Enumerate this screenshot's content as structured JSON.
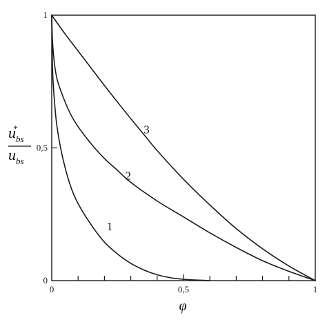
{
  "chart_data": {
    "type": "line",
    "xlabel": "φ",
    "ylabel": {
      "numerator_base": "u",
      "numerator_sub": "bs",
      "numerator_sup": "*",
      "denominator_base": "u",
      "denominator_sub": "bs"
    },
    "xlim": [
      0,
      1
    ],
    "ylim": [
      0,
      1
    ],
    "x_ticks": [
      {
        "value": 0,
        "label": "0"
      },
      {
        "value": 0.5,
        "label": "0,5"
      },
      {
        "value": 1,
        "label": "1"
      }
    ],
    "y_ticks": [
      {
        "value": 0,
        "label": "0"
      },
      {
        "value": 0.5,
        "label": "0,5"
      },
      {
        "value": 1,
        "label": "1"
      }
    ],
    "grid": false,
    "series": [
      {
        "label": "1",
        "label_at": [
          0.22,
          0.19
        ],
        "points": [
          [
            0,
            1
          ],
          [
            0.003,
            0.8
          ],
          [
            0.01,
            0.68
          ],
          [
            0.02,
            0.58
          ],
          [
            0.04,
            0.47
          ],
          [
            0.07,
            0.36
          ],
          [
            0.1,
            0.29
          ],
          [
            0.15,
            0.21
          ],
          [
            0.2,
            0.145
          ],
          [
            0.25,
            0.1
          ],
          [
            0.3,
            0.065
          ],
          [
            0.35,
            0.04
          ],
          [
            0.4,
            0.022
          ],
          [
            0.45,
            0.011
          ],
          [
            0.5,
            0.005
          ],
          [
            0.55,
            0.002
          ],
          [
            0.6,
            0
          ]
        ]
      },
      {
        "label": "2",
        "label_at": [
          0.29,
          0.38
        ],
        "points": [
          [
            0,
            1
          ],
          [
            0.003,
            0.9
          ],
          [
            0.01,
            0.82
          ],
          [
            0.02,
            0.76
          ],
          [
            0.04,
            0.7
          ],
          [
            0.07,
            0.63
          ],
          [
            0.1,
            0.58
          ],
          [
            0.15,
            0.515
          ],
          [
            0.2,
            0.46
          ],
          [
            0.25,
            0.415
          ],
          [
            0.3,
            0.37
          ],
          [
            0.4,
            0.3
          ],
          [
            0.5,
            0.24
          ],
          [
            0.6,
            0.18
          ],
          [
            0.7,
            0.125
          ],
          [
            0.8,
            0.075
          ],
          [
            0.9,
            0.035
          ],
          [
            1,
            0
          ]
        ]
      },
      {
        "label": "3",
        "label_at": [
          0.36,
          0.555
        ],
        "points": [
          [
            0,
            1
          ],
          [
            0.05,
            0.93
          ],
          [
            0.1,
            0.865
          ],
          [
            0.15,
            0.8
          ],
          [
            0.2,
            0.735
          ],
          [
            0.25,
            0.672
          ],
          [
            0.3,
            0.61
          ],
          [
            0.35,
            0.55
          ],
          [
            0.4,
            0.49
          ],
          [
            0.5,
            0.382
          ],
          [
            0.6,
            0.285
          ],
          [
            0.7,
            0.196
          ],
          [
            0.8,
            0.12
          ],
          [
            0.9,
            0.055
          ],
          [
            1,
            0
          ]
        ]
      }
    ]
  }
}
